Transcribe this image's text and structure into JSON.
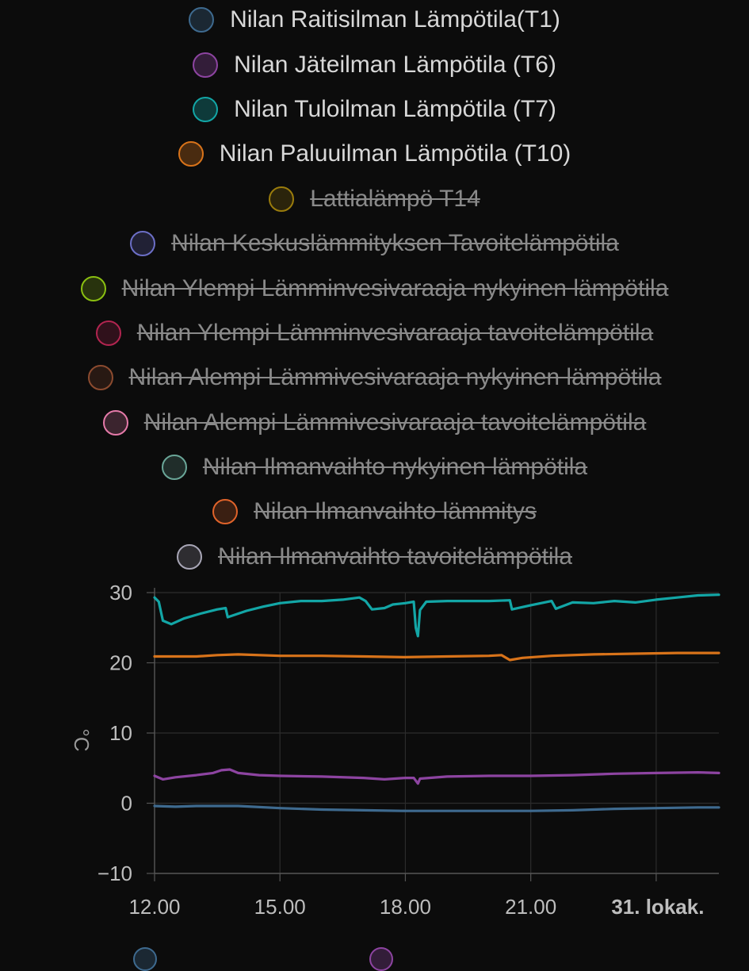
{
  "legend": [
    {
      "label": "Nilan Raitisilman Lämpötila(T1)",
      "color": "#3e6a8f",
      "hidden": false
    },
    {
      "label": "Nilan Jäteilman Lämpötila (T6)",
      "color": "#8d44a1",
      "hidden": false
    },
    {
      "label": "Nilan Tuloilman Lämpötila (T7)",
      "color": "#13a6a6",
      "hidden": false
    },
    {
      "label": "Nilan Paluuilman Lämpötila (T10)",
      "color": "#d8731a",
      "hidden": false
    },
    {
      "label": "Lattialämpö T14",
      "color": "#9a7c0c",
      "hidden": true
    },
    {
      "label": "Nilan Keskuslämmityksen Tavoitelämpötila",
      "color": "#6c6fc7",
      "hidden": true
    },
    {
      "label": "Nilan Ylempi Lämminvesivaraaja nykyinen lämpötila",
      "color": "#8bc011",
      "hidden": true
    },
    {
      "label": "Nilan Ylempi Lämminvesivaraaja tavoitelämpötila",
      "color": "#b22550",
      "hidden": true
    },
    {
      "label": "Nilan Alempi Lämmivesivaraaja nykyinen lämpötila",
      "color": "#8c4b2f",
      "hidden": true
    },
    {
      "label": "Nilan Alempi Lämmivesivaraaja tavoitelämpötila",
      "color": "#e57aa9",
      "hidden": true
    },
    {
      "label": "Nilan Ilmanvaihto nykyinen lämpötila",
      "color": "#6aa698",
      "hidden": true
    },
    {
      "label": "Nilan Ilmanvaihto lämmitys",
      "color": "#e0632a",
      "hidden": true
    },
    {
      "label": "Nilan Ilmanvaihto tavoitelämpötila",
      "color": "#a8a6b6",
      "hidden": true
    }
  ],
  "chart_data": {
    "type": "line",
    "xlabel": "",
    "ylabel": "°C",
    "ylim": [
      -10,
      30
    ],
    "yticks": [
      30,
      20,
      10,
      0,
      -10
    ],
    "ytick_labels": [
      "30",
      "20",
      "10",
      "0",
      "−10"
    ],
    "xlim": [
      12,
      25.5
    ],
    "xticks": [
      12,
      15,
      18,
      21,
      24
    ],
    "xtick_labels": [
      "12.00",
      "15.00",
      "18.00",
      "21.00",
      "31. lokak."
    ],
    "grid": true,
    "series": [
      {
        "name": "Nilan Tuloilman Lämpötila (T7)",
        "color": "#13a6a6",
        "points": [
          [
            12.0,
            29.3
          ],
          [
            12.1,
            28.7
          ],
          [
            12.2,
            26.0
          ],
          [
            12.4,
            25.5
          ],
          [
            12.7,
            26.3
          ],
          [
            13.1,
            27.0
          ],
          [
            13.5,
            27.6
          ],
          [
            13.7,
            27.8
          ],
          [
            13.75,
            26.5
          ],
          [
            14.2,
            27.4
          ],
          [
            14.6,
            28.0
          ],
          [
            15.0,
            28.5
          ],
          [
            15.5,
            28.8
          ],
          [
            16.0,
            28.8
          ],
          [
            16.5,
            29.0
          ],
          [
            16.9,
            29.3
          ],
          [
            17.05,
            28.8
          ],
          [
            17.2,
            27.6
          ],
          [
            17.5,
            27.8
          ],
          [
            17.7,
            28.3
          ],
          [
            18.0,
            28.5
          ],
          [
            18.2,
            28.7
          ],
          [
            18.25,
            25.0
          ],
          [
            18.3,
            23.8
          ],
          [
            18.35,
            27.5
          ],
          [
            18.5,
            28.7
          ],
          [
            19.0,
            28.8
          ],
          [
            19.5,
            28.8
          ],
          [
            20.0,
            28.8
          ],
          [
            20.5,
            28.9
          ],
          [
            20.55,
            27.6
          ],
          [
            21.0,
            28.2
          ],
          [
            21.5,
            28.8
          ],
          [
            21.6,
            27.7
          ],
          [
            22.0,
            28.6
          ],
          [
            22.5,
            28.5
          ],
          [
            23.0,
            28.8
          ],
          [
            23.5,
            28.6
          ],
          [
            24.0,
            29.0
          ],
          [
            24.5,
            29.3
          ],
          [
            25.0,
            29.6
          ],
          [
            25.5,
            29.7
          ]
        ]
      },
      {
        "name": "Nilan Paluuilman Lämpötila (T10)",
        "color": "#d8731a",
        "points": [
          [
            12.0,
            20.9
          ],
          [
            12.5,
            20.9
          ],
          [
            13.0,
            20.9
          ],
          [
            13.5,
            21.1
          ],
          [
            14.0,
            21.2
          ],
          [
            15.0,
            21.0
          ],
          [
            16.0,
            21.0
          ],
          [
            17.0,
            20.9
          ],
          [
            18.0,
            20.8
          ],
          [
            19.0,
            20.9
          ],
          [
            20.0,
            21.0
          ],
          [
            20.3,
            21.1
          ],
          [
            20.5,
            20.4
          ],
          [
            20.8,
            20.7
          ],
          [
            21.5,
            21.0
          ],
          [
            22.5,
            21.2
          ],
          [
            23.5,
            21.3
          ],
          [
            24.5,
            21.4
          ],
          [
            25.5,
            21.4
          ]
        ]
      },
      {
        "name": "Nilan Jäteilman Lämpötila (T6)",
        "color": "#8d44a1",
        "points": [
          [
            12.0,
            3.9
          ],
          [
            12.2,
            3.4
          ],
          [
            12.5,
            3.7
          ],
          [
            13.0,
            4.0
          ],
          [
            13.4,
            4.3
          ],
          [
            13.6,
            4.7
          ],
          [
            13.8,
            4.8
          ],
          [
            14.0,
            4.3
          ],
          [
            14.5,
            4.0
          ],
          [
            15.0,
            3.9
          ],
          [
            16.0,
            3.8
          ],
          [
            17.0,
            3.6
          ],
          [
            17.5,
            3.4
          ],
          [
            18.0,
            3.6
          ],
          [
            18.2,
            3.6
          ],
          [
            18.3,
            2.8
          ],
          [
            18.35,
            3.5
          ],
          [
            19.0,
            3.8
          ],
          [
            20.0,
            3.9
          ],
          [
            21.0,
            3.9
          ],
          [
            22.0,
            4.0
          ],
          [
            23.0,
            4.2
          ],
          [
            24.0,
            4.3
          ],
          [
            25.0,
            4.4
          ],
          [
            25.5,
            4.3
          ]
        ]
      },
      {
        "name": "Nilan Raitisilman Lämpötila(T1)",
        "color": "#3e6a8f",
        "points": [
          [
            12.0,
            -0.4
          ],
          [
            12.5,
            -0.5
          ],
          [
            13.0,
            -0.4
          ],
          [
            14.0,
            -0.4
          ],
          [
            15.0,
            -0.7
          ],
          [
            16.0,
            -0.9
          ],
          [
            17.0,
            -1.0
          ],
          [
            18.0,
            -1.1
          ],
          [
            19.0,
            -1.1
          ],
          [
            20.0,
            -1.1
          ],
          [
            21.0,
            -1.1
          ],
          [
            22.0,
            -1.0
          ],
          [
            23.0,
            -0.8
          ],
          [
            24.0,
            -0.7
          ],
          [
            25.0,
            -0.6
          ],
          [
            25.5,
            -0.6
          ]
        ]
      }
    ]
  },
  "bottom_legend": {
    "colors": [
      "#3e6a8f",
      "#8d44a1"
    ]
  }
}
